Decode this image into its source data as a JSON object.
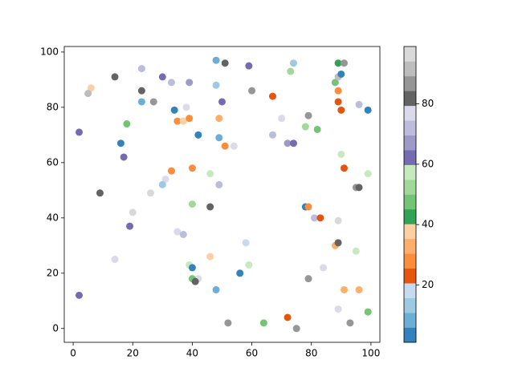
{
  "chart_data": {
    "type": "scatter",
    "x": [
      2,
      6,
      5,
      14,
      23,
      23,
      27,
      23,
      30,
      33,
      34,
      38,
      39,
      35,
      37,
      39,
      42,
      48,
      51,
      48,
      50,
      49,
      49,
      51,
      54,
      59,
      60,
      67,
      74,
      73,
      70,
      67,
      72,
      74,
      79,
      78,
      82,
      88,
      89,
      89,
      91,
      90,
      89,
      89,
      90,
      96,
      99,
      18,
      16,
      17,
      9,
      26,
      31,
      30,
      33,
      40,
      46,
      49,
      40,
      46,
      20,
      19,
      35,
      37,
      14,
      39,
      40,
      42,
      40,
      41,
      46,
      48,
      56,
      58,
      59,
      2,
      52,
      64,
      72,
      75,
      78,
      79,
      81,
      83,
      79,
      84,
      88,
      89,
      89,
      89,
      91,
      96,
      93,
      99,
      95,
      95,
      96,
      91,
      90,
      99
    ],
    "y": [
      71,
      87,
      85,
      91,
      94,
      86,
      82,
      82,
      91,
      89,
      79,
      80,
      89,
      75,
      75,
      76,
      70,
      97,
      96,
      88,
      82,
      76,
      69,
      66,
      66,
      95,
      86,
      84,
      96,
      93,
      76,
      70,
      67,
      67,
      77,
      73,
      72,
      89,
      91,
      96,
      96,
      92,
      86,
      82,
      79,
      81,
      79,
      74,
      67,
      62,
      49,
      49,
      54,
      52,
      57,
      58,
      56,
      52,
      45,
      44,
      42,
      37,
      35,
      34,
      25,
      23,
      22,
      18,
      18,
      17,
      26,
      14,
      20,
      31,
      23,
      12,
      2,
      2,
      4,
      0,
      44,
      44,
      40,
      40,
      18,
      22,
      30,
      31,
      39,
      7,
      14,
      14,
      2,
      6,
      28,
      51,
      51,
      58,
      63,
      56
    ],
    "c": [
      62,
      38,
      91,
      82,
      72,
      82,
      87,
      8,
      62,
      72,
      3,
      77,
      67,
      28,
      38,
      28,
      3,
      8,
      82,
      13,
      62,
      33,
      8,
      28,
      77,
      62,
      87,
      23,
      13,
      52,
      77,
      72,
      67,
      62,
      87,
      52,
      48,
      48,
      91,
      43,
      87,
      3,
      28,
      23,
      23,
      72,
      3,
      48,
      3,
      62,
      82,
      96,
      77,
      13,
      28,
      28,
      57,
      72,
      52,
      82,
      96,
      62,
      77,
      72,
      77,
      57,
      3,
      77,
      48,
      82,
      38,
      8,
      3,
      18,
      57,
      62,
      87,
      48,
      23,
      87,
      3,
      28,
      72,
      23,
      87,
      77,
      33,
      82,
      96,
      77,
      33,
      33,
      87,
      48,
      57,
      87,
      82,
      23,
      57,
      57
    ],
    "clim": [
      1,
      99
    ],
    "colormap": [
      "#3182bd",
      "#6baed6",
      "#9ecae1",
      "#c6dbef",
      "#e6550d",
      "#fd8d3c",
      "#fdae6b",
      "#fdd0a2",
      "#31a354",
      "#74c476",
      "#a1d99b",
      "#c7e9c0",
      "#756bb1",
      "#9e9ac8",
      "#bcbddc",
      "#dadaeb",
      "#636363",
      "#969696",
      "#bdbdbd",
      "#d9d9d9"
    ],
    "colorbar_ticks": [
      20,
      40,
      60,
      80
    ],
    "xlim": [
      -3,
      103
    ],
    "ylim": [
      -5,
      102
    ],
    "xticks": [
      0,
      20,
      40,
      60,
      80,
      100
    ],
    "yticks": [
      0,
      20,
      40,
      60,
      80,
      100
    ]
  }
}
